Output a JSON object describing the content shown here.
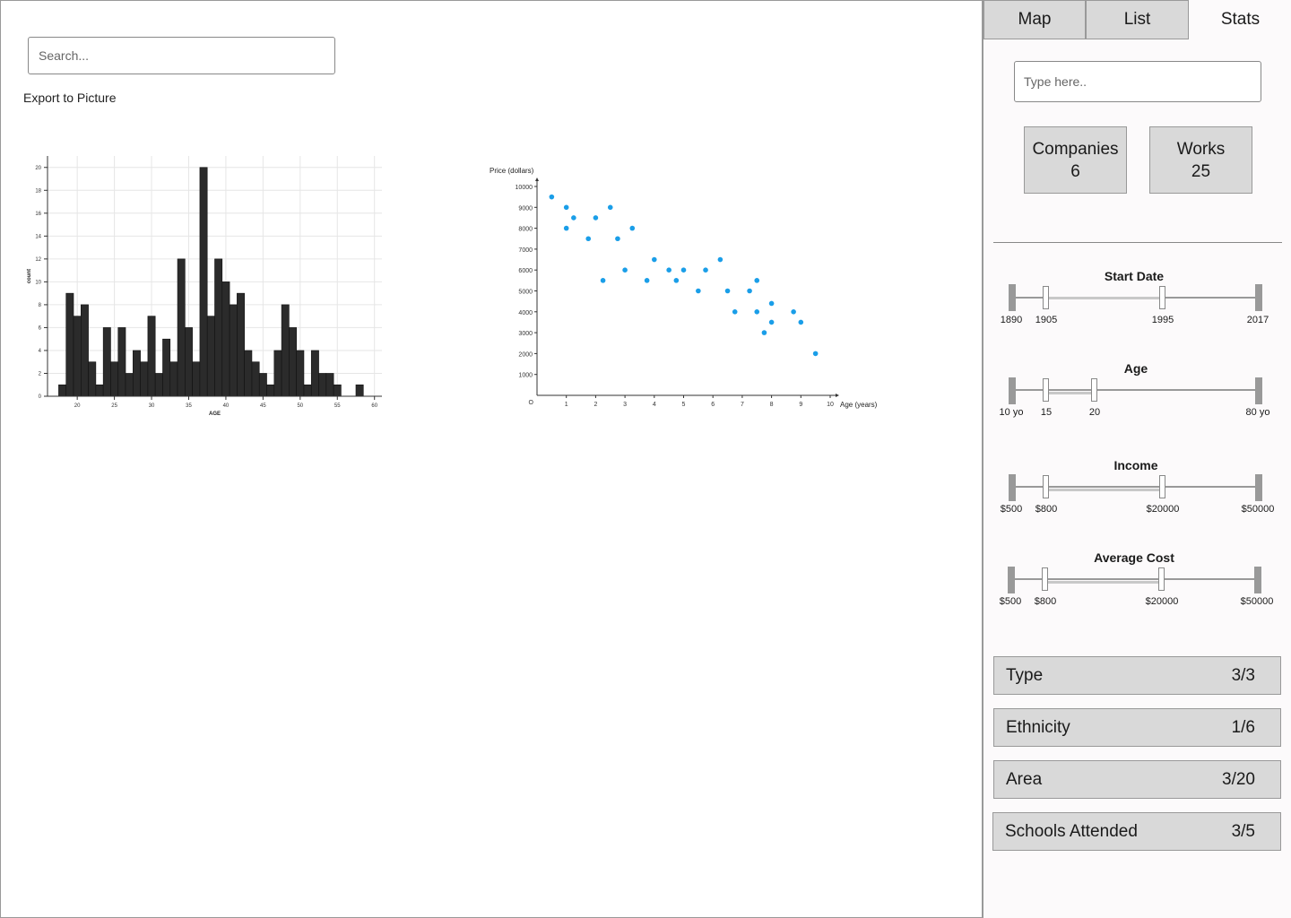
{
  "search": {
    "placeholder": "Search..."
  },
  "export_label": "Export to Picture",
  "tabs": [
    {
      "label": "Map",
      "active": false
    },
    {
      "label": "List",
      "active": false
    },
    {
      "label": "Stats",
      "active": true
    }
  ],
  "sidebar": {
    "input_placeholder": "Type here..",
    "stats": [
      {
        "label": "Companies",
        "value": "6"
      },
      {
        "label": "Works",
        "value": "25"
      }
    ],
    "filters": [
      {
        "title": "Start Date",
        "min": "1890",
        "low": "1905",
        "high": "1995",
        "max": "2017"
      },
      {
        "title": "Age",
        "min": "10 yo",
        "low": "15",
        "high": "20",
        "max": "80 yo"
      },
      {
        "title": "Income",
        "min": "$500",
        "low": "$800",
        "high": "$20000",
        "max": "$50000"
      },
      {
        "title": "Average Cost",
        "min": "$500",
        "low": "$800",
        "high": "$20000",
        "max": "$50000"
      }
    ],
    "facets": [
      {
        "label": "Type",
        "count": "3/3"
      },
      {
        "label": "Ethnicity",
        "count": "1/6"
      },
      {
        "label": "Area",
        "count": "3/20"
      },
      {
        "label": "Schools Attended",
        "count": "3/5"
      }
    ]
  },
  "chart_data": [
    {
      "type": "bar",
      "xlabel": "AGE",
      "ylabel": "count",
      "xlim": [
        16,
        61
      ],
      "ylim": [
        0,
        21
      ],
      "xticks": [
        20,
        25,
        30,
        35,
        40,
        45,
        50,
        55,
        60
      ],
      "yticks": [
        0,
        2,
        4,
        6,
        8,
        10,
        12,
        14,
        16,
        18,
        20
      ],
      "bin_width": 1,
      "bins": [
        18,
        19,
        20,
        21,
        22,
        23,
        24,
        25,
        26,
        27,
        28,
        29,
        30,
        31,
        32,
        33,
        34,
        35,
        36,
        37,
        38,
        39,
        40,
        41,
        42,
        43,
        44,
        45,
        46,
        47,
        48,
        49,
        50,
        51,
        52,
        53,
        54,
        55,
        56,
        57,
        58
      ],
      "values": [
        1,
        9,
        7,
        8,
        3,
        1,
        6,
        3,
        6,
        2,
        4,
        3,
        7,
        2,
        5,
        3,
        12,
        6,
        3,
        20,
        7,
        12,
        10,
        8,
        9,
        4,
        3,
        2,
        1,
        4,
        8,
        6,
        4,
        1,
        4,
        2,
        2,
        1,
        0,
        0,
        1
      ],
      "color": "#2b2b2b",
      "grid": true
    },
    {
      "type": "scatter",
      "xlabel": "Age (years)",
      "ylabel": "Price (dollars)",
      "xlim": [
        0,
        10
      ],
      "ylim": [
        0,
        10000
      ],
      "xticks": [
        1,
        2,
        3,
        4,
        5,
        6,
        7,
        8,
        9,
        10
      ],
      "yticks": [
        1000,
        2000,
        3000,
        4000,
        5000,
        6000,
        7000,
        8000,
        9000,
        10000
      ],
      "origin_label": "O",
      "color": "#1a9ee8",
      "points": [
        [
          0.5,
          9500
        ],
        [
          1,
          9000
        ],
        [
          1,
          8000
        ],
        [
          1.25,
          8500
        ],
        [
          1.75,
          7500
        ],
        [
          2,
          8500
        ],
        [
          2.25,
          5500
        ],
        [
          2.5,
          9000
        ],
        [
          2.75,
          7500
        ],
        [
          3,
          6000
        ],
        [
          3.25,
          8000
        ],
        [
          3.75,
          5500
        ],
        [
          4,
          6500
        ],
        [
          4.5,
          6000
        ],
        [
          4.75,
          5500
        ],
        [
          5,
          6000
        ],
        [
          5.5,
          5000
        ],
        [
          5.75,
          6000
        ],
        [
          6.25,
          6500
        ],
        [
          6.5,
          5000
        ],
        [
          6.75,
          4000
        ],
        [
          7.25,
          5000
        ],
        [
          7.5,
          5500
        ],
        [
          7.5,
          4000
        ],
        [
          7.75,
          3000
        ],
        [
          8,
          4400
        ],
        [
          8,
          3500
        ],
        [
          8.75,
          4000
        ],
        [
          9,
          3500
        ],
        [
          9.5,
          2000
        ]
      ]
    }
  ]
}
